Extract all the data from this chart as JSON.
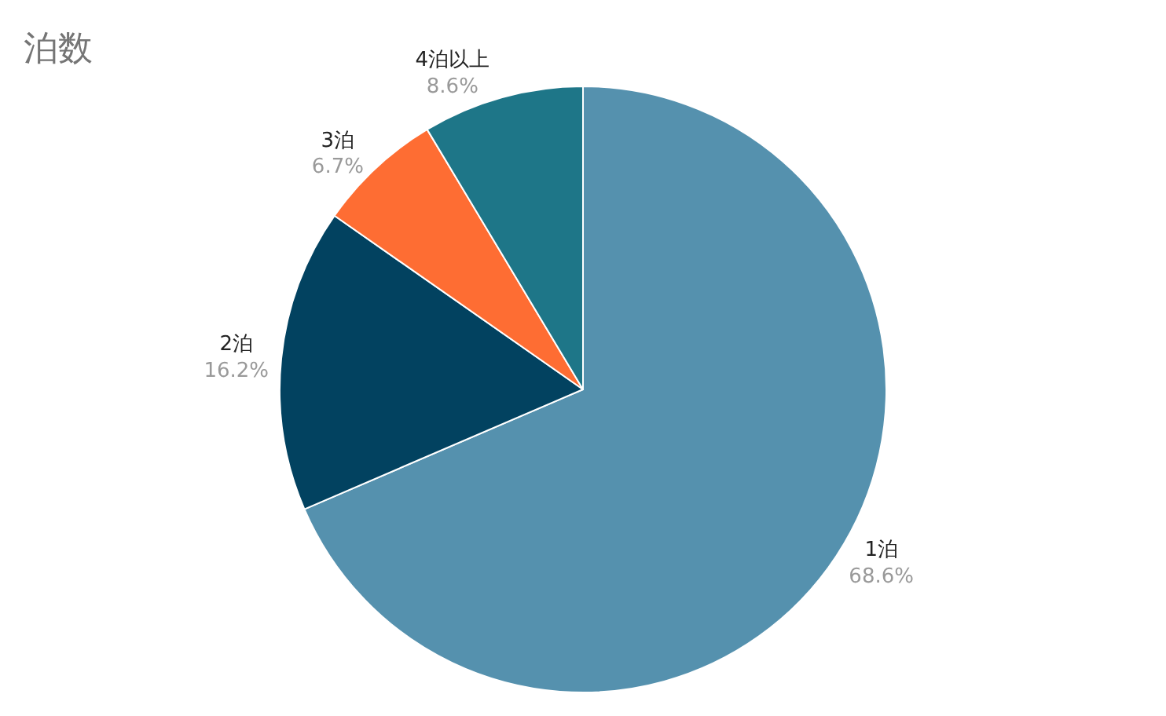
{
  "chart_data": {
    "type": "pie",
    "title": "泊数",
    "categories": [
      "1泊",
      "2泊",
      "3泊",
      "4泊以上"
    ],
    "values": [
      68.6,
      16.2,
      6.7,
      8.6
    ],
    "value_labels": [
      "68.6%",
      "16.2%",
      "6.7%",
      "8.6%"
    ],
    "colors": [
      "#5591ae",
      "#024260",
      "#fe6d33",
      "#1e7688"
    ],
    "legend": false
  }
}
